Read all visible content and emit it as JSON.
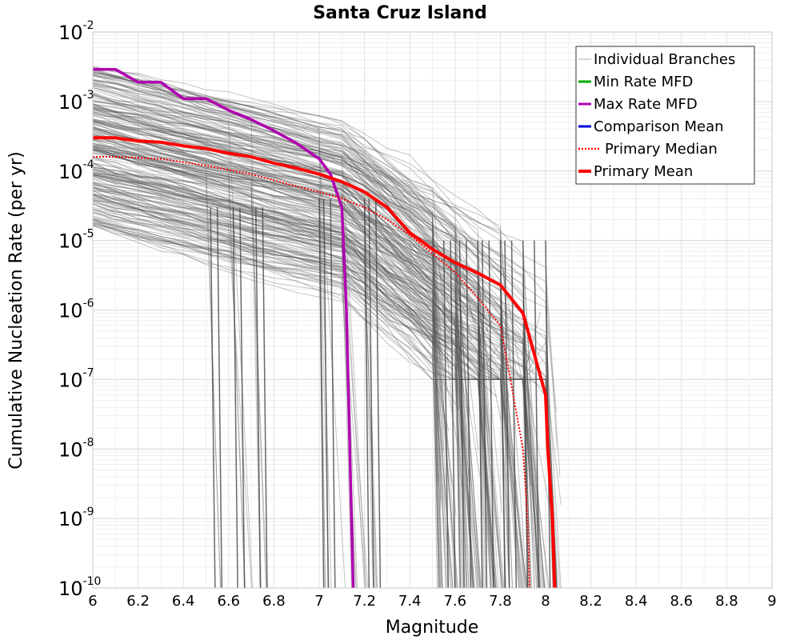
{
  "chart_data": {
    "type": "line",
    "title": "Santa Cruz Island",
    "xlabel": "Magnitude",
    "ylabel": "Cumulative Nucleation Rate (per yr)",
    "xlim": [
      6,
      9
    ],
    "ylim_log10": [
      -10,
      -2
    ],
    "x_ticks": [
      "6",
      "6.2",
      "6.4",
      "6.6",
      "6.8",
      "7",
      "7.2",
      "7.4",
      "7.6",
      "7.8",
      "8",
      "8.2",
      "8.4",
      "8.6",
      "8.8",
      "9"
    ],
    "y_ticks": [
      {
        "base": "10",
        "exp": "-2"
      },
      {
        "base": "10",
        "exp": "-3"
      },
      {
        "base": "10",
        "exp": "-4"
      },
      {
        "base": "10",
        "exp": "-5"
      },
      {
        "base": "10",
        "exp": "-6"
      },
      {
        "base": "10",
        "exp": "-7"
      },
      {
        "base": "10",
        "exp": "-8"
      },
      {
        "base": "10",
        "exp": "-9"
      },
      {
        "base": "10",
        "exp": "-10"
      }
    ],
    "legend": [
      {
        "label": "Individual Branches",
        "color": "#b0b0b0",
        "style": "thin"
      },
      {
        "label": "Min Rate MFD",
        "color": "#00aa00",
        "style": "solid"
      },
      {
        "label": "Max Rate MFD",
        "color": "#b000b0",
        "style": "solid"
      },
      {
        "label": "Comparison Mean",
        "color": "#0000dd",
        "style": "solid"
      },
      {
        "label": "Primary Median",
        "color": "#ff0000",
        "style": "dotted"
      },
      {
        "label": "Primary Mean",
        "color": "#ff0000",
        "style": "thick"
      }
    ],
    "legend_position": "top-right",
    "branch_color": "#555555",
    "series": [
      {
        "name": "Max Rate MFD",
        "color": "#b000b0",
        "x": [
          6.0,
          6.1,
          6.2,
          6.3,
          6.4,
          6.5,
          6.6,
          6.7,
          6.8,
          6.9,
          7.0,
          7.05,
          7.1,
          7.12,
          7.15
        ],
        "y": [
          0.0029,
          0.0029,
          0.0019,
          0.0019,
          0.0011,
          0.0011,
          0.00075,
          0.00055,
          0.00038,
          0.00025,
          0.00015,
          9e-05,
          3e-05,
          1e-06,
          1e-10
        ]
      },
      {
        "name": "Primary Mean",
        "color": "#ff0000",
        "x": [
          6.0,
          6.1,
          6.2,
          6.3,
          6.4,
          6.5,
          6.6,
          6.7,
          6.8,
          6.9,
          7.0,
          7.1,
          7.2,
          7.3,
          7.4,
          7.5,
          7.6,
          7.7,
          7.8,
          7.9,
          8.0,
          8.01,
          8.03,
          8.04
        ],
        "y": [
          0.0003,
          0.0003,
          0.00027,
          0.00026,
          0.00023,
          0.00021,
          0.00018,
          0.00016,
          0.00013,
          0.00011,
          9e-05,
          7e-05,
          5e-05,
          3e-05,
          1.3e-05,
          7.5e-06,
          4.8e-06,
          3.4e-06,
          2.3e-06,
          9e-07,
          6e-08,
          1e-08,
          1e-09,
          1e-10
        ]
      },
      {
        "name": "Primary Median",
        "color": "#ff0000",
        "x": [
          6.0,
          6.1,
          6.3,
          6.5,
          6.7,
          6.9,
          7.0,
          7.1,
          7.2,
          7.3,
          7.4,
          7.5,
          7.6,
          7.7,
          7.8,
          7.85,
          7.9,
          7.92,
          7.93
        ],
        "y": [
          0.00016,
          0.00016,
          0.00015,
          0.00012,
          9e-05,
          6e-05,
          5e-05,
          4e-05,
          3e-05,
          2e-05,
          1.2e-05,
          6.5e-06,
          3.5e-06,
          1.5e-06,
          6e-07,
          8e-08,
          1e-08,
          1e-09,
          1e-10
        ]
      }
    ]
  }
}
